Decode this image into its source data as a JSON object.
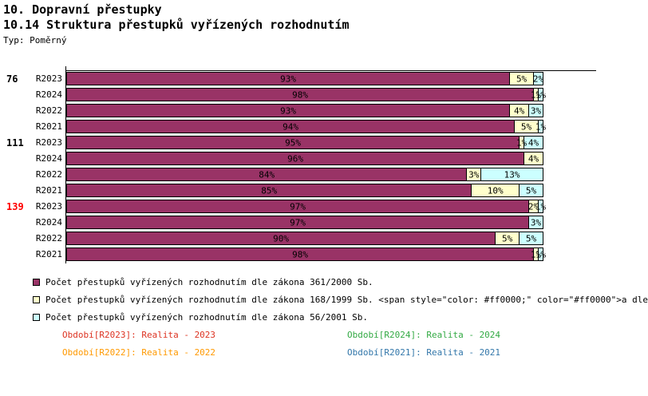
{
  "titles": {
    "line1": "10. Dopravní přestupky",
    "line2": "10.14 Struktura přestupků vyřízených rozhodnutím",
    "type": "Typ: Poměrný"
  },
  "chart_data": {
    "type": "bar",
    "subtype": "horizontal-stacked-percent",
    "xlim": [
      0,
      100
    ],
    "grid": false,
    "series": [
      {
        "name": "Počet přestupků vyřízených rozhodnutím dle zákona 361/2000 Sb.",
        "key": "zakon-361-2000",
        "color": "#993366"
      },
      {
        "name": "Počet přestupků vyřízených rozhodnutím dle zákona 168/1999 Sb.",
        "key": "zakon-168-1999",
        "color": "#ffffcc"
      },
      {
        "name": "Počet přestupků vyřízených rozhodnutím dle zákona 56/2001 Sb.",
        "key": "zakon-56-2001",
        "color": "#ccffff"
      }
    ],
    "groups": [
      {
        "label": "76",
        "label_color": "#000000",
        "rows": [
          {
            "period": "R2023",
            "values": [
              93,
              5,
              2
            ]
          },
          {
            "period": "R2024",
            "values": [
              98,
              1,
              1
            ]
          },
          {
            "period": "R2022",
            "values": [
              93,
              4,
              3
            ]
          },
          {
            "period": "R2021",
            "values": [
              94,
              5,
              1
            ]
          }
        ]
      },
      {
        "label": "111",
        "label_color": "#000000",
        "rows": [
          {
            "period": "R2023",
            "values": [
              95,
              1,
              4
            ]
          },
          {
            "period": "R2024",
            "values": [
              96,
              4,
              0
            ]
          },
          {
            "period": "R2022",
            "values": [
              84,
              3,
              13
            ]
          },
          {
            "period": "R2021",
            "values": [
              85,
              10,
              5
            ]
          }
        ]
      },
      {
        "label": "139",
        "label_color": "#ff0000",
        "rows": [
          {
            "period": "R2023",
            "values": [
              97,
              2,
              1
            ]
          },
          {
            "period": "R2024",
            "values": [
              97,
              0,
              3
            ]
          },
          {
            "period": "R2022",
            "values": [
              90,
              5,
              5
            ]
          },
          {
            "period": "R2021",
            "values": [
              98,
              1,
              1
            ]
          }
        ]
      }
    ],
    "value_suffix": "%"
  },
  "legend": {
    "items": [
      {
        "color": "#993366",
        "label": "Počet přestupků vyřízených rozhodnutím dle zákona 361/2000 Sb."
      },
      {
        "color": "#ffffcc",
        "label": "Počet přestupků vyřízených rozhodnutím dle zákona 168/1999 Sb. <span style=\"color: #ff0000;\" color=\"#ff0000\">a dle"
      },
      {
        "color": "#ccffff",
        "label": "Počet přestupků vyřízených rozhodnutím dle zákona 56/2001 Sb."
      }
    ]
  },
  "period_legend": {
    "items": [
      {
        "text": "Období[R2023]: Realita - 2023",
        "color": "#dd3322"
      },
      {
        "text": "Období[R2024]: Realita - 2024",
        "color": "#33aa44"
      },
      {
        "text": "Období[R2022]: Realita - 2022",
        "color": "#ff9900"
      },
      {
        "text": "Období[R2021]: Realita - 2021",
        "color": "#3377aa"
      }
    ]
  }
}
